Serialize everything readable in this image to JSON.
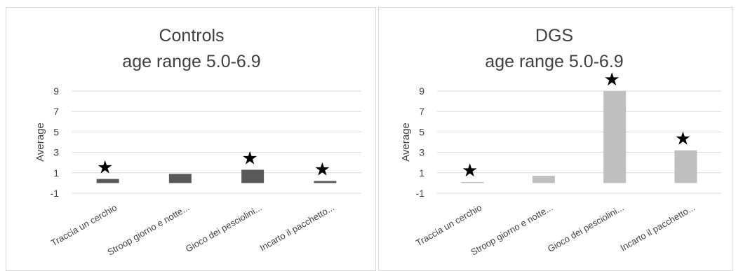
{
  "chart_data": [
    {
      "type": "bar",
      "title": [
        "Controls",
        "age range 5.0-6.9"
      ],
      "ylabel": "Average",
      "xlabel": "",
      "ylim": [
        -1,
        9
      ],
      "yticks": [
        -1,
        1,
        3,
        5,
        7,
        9
      ],
      "grid": true,
      "color": "#595959",
      "categories": [
        "Traccia un cerchio",
        "Stroop giorno e notte...",
        "Gioco dei pesciolini...",
        "Incarto il pacchetto..."
      ],
      "values": [
        0.4,
        0.9,
        1.3,
        0.2
      ],
      "annotations": [
        "★",
        "",
        "★",
        "★"
      ]
    },
    {
      "type": "bar",
      "title": [
        "DGS",
        "age range 5.0-6.9"
      ],
      "ylabel": "Average",
      "xlabel": "",
      "ylim": [
        -1,
        9
      ],
      "yticks": [
        -1,
        1,
        3,
        5,
        7,
        9
      ],
      "grid": true,
      "color": "#bfbfbf",
      "categories": [
        "Traccia un cerchio",
        "Stroop giorno e notte...",
        "Gioco dei pesciolini...",
        "Incarto il pacchetto..."
      ],
      "values": [
        0.1,
        0.7,
        9.0,
        3.2
      ],
      "annotations": [
        "★",
        "",
        "★",
        "★"
      ]
    }
  ]
}
